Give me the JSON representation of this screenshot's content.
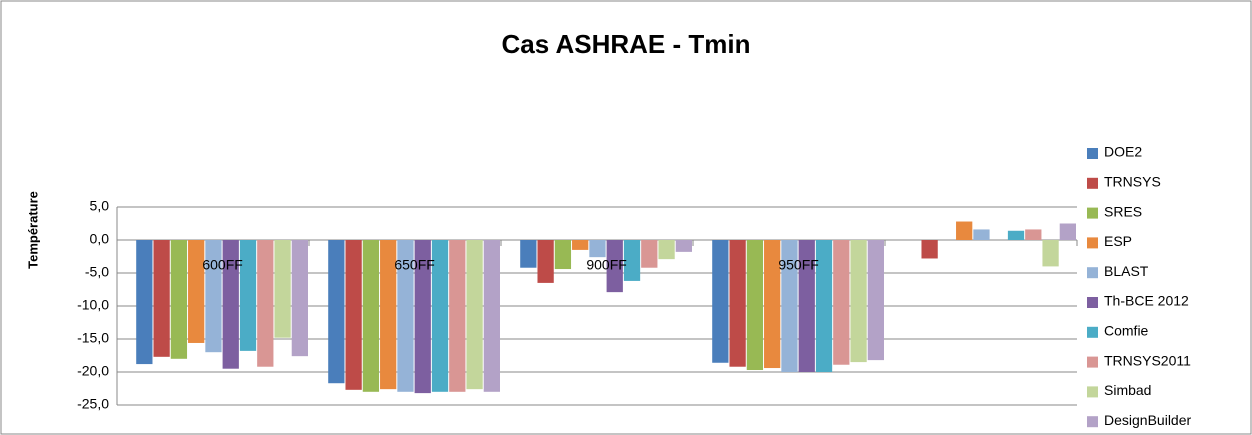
{
  "chart_data": {
    "type": "bar",
    "title": "Cas ASHRAE - Tmin",
    "y_label": "Température",
    "categories": [
      "600FF",
      "650FF",
      "900FF",
      "950FF",
      null
    ],
    "series": [
      {
        "name": "DOE2",
        "color": "#4a7ebb",
        "values": [
          -18.8,
          -21.7,
          -4.2,
          -18.6,
          null
        ]
      },
      {
        "name": "TRNSYS",
        "color": "#be4b48",
        "values": [
          -17.7,
          -22.7,
          -6.5,
          -19.2,
          -2.8
        ]
      },
      {
        "name": "SRES",
        "color": "#98b954",
        "values": [
          -18.0,
          -23.0,
          -4.4,
          -19.7,
          null
        ]
      },
      {
        "name": "ESP",
        "color": "#e8893e",
        "values": [
          -15.6,
          -22.6,
          -1.5,
          -19.4,
          2.8
        ]
      },
      {
        "name": "BLAST",
        "color": "#95b3d7",
        "values": [
          -17.0,
          -23.0,
          -2.6,
          -20.0,
          1.6
        ]
      },
      {
        "name": "Th-BCE 2012",
        "color": "#7d5fa0",
        "values": [
          -19.5,
          -23.2,
          -7.9,
          -20.0,
          null
        ]
      },
      {
        "name": "Comfie",
        "color": "#4bacc6",
        "values": [
          -16.8,
          -23.0,
          -6.2,
          -20.0,
          1.4
        ]
      },
      {
        "name": "TRNSYS2011",
        "color": "#d99694",
        "values": [
          -19.2,
          -23.0,
          -4.2,
          -18.9,
          1.6
        ]
      },
      {
        "name": "Simbad",
        "color": "#c3d69b",
        "values": [
          -14.8,
          -22.6,
          -2.9,
          -18.5,
          -4.0
        ]
      },
      {
        "name": "DesignBuilder",
        "color": "#b3a2c7",
        "values": [
          -17.6,
          -23.0,
          -1.8,
          -18.2,
          2.5
        ]
      }
    ],
    "ylim": [
      -25,
      5
    ],
    "yticks": [
      {
        "value": 5,
        "label": "5,0"
      },
      {
        "value": 0,
        "label": "0,0"
      },
      {
        "value": -5,
        "label": "-5,0"
      },
      {
        "value": -10,
        "label": "-10,0"
      },
      {
        "value": -15,
        "label": "-15,0"
      },
      {
        "value": -20,
        "label": "-20,0"
      },
      {
        "value": -25,
        "label": "-25,0"
      }
    ],
    "grid": true,
    "legend": "right"
  }
}
